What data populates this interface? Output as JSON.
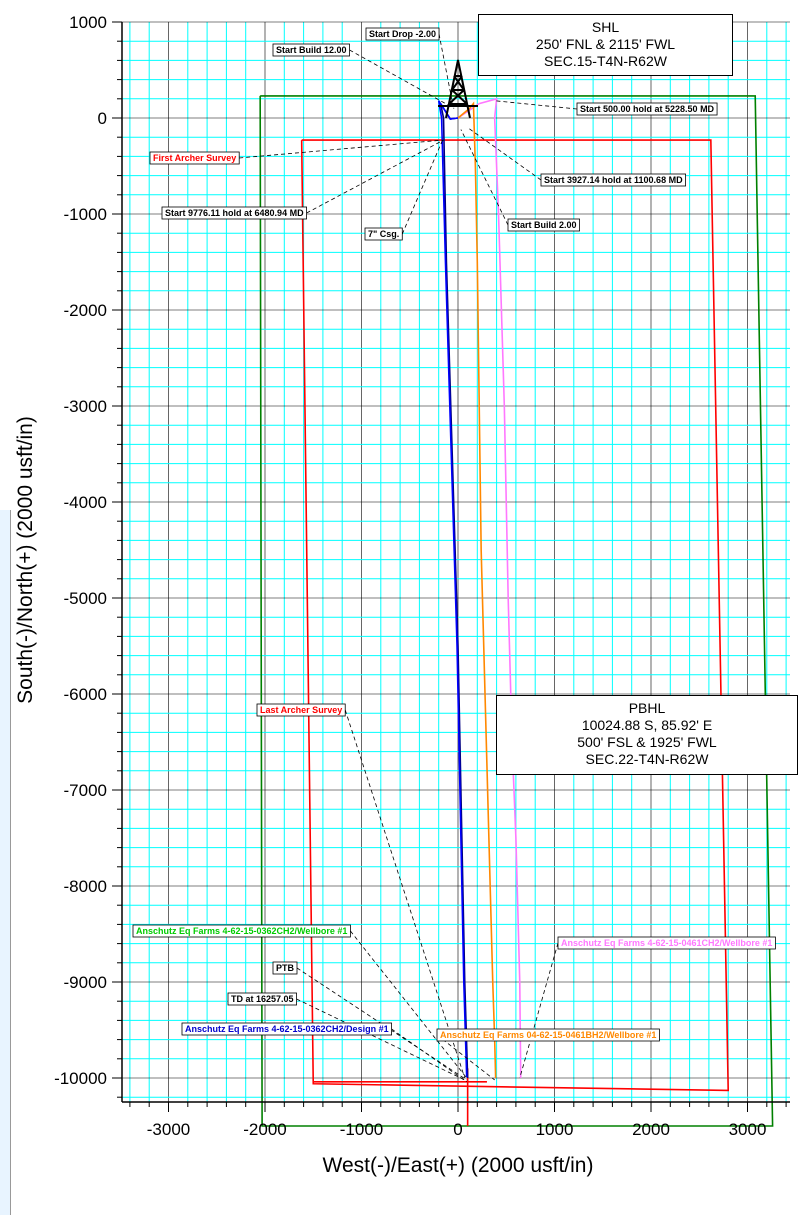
{
  "chart_data": {
    "type": "line",
    "xlabel": "West(-)/East(+) (2000 usft/in)",
    "ylabel": "South(-)/North(+) (2000 usft/in)",
    "xlim": [
      -3500,
      3600
    ],
    "ylim": [
      -10500,
      1000
    ],
    "x_ticks": [
      -3000,
      -2000,
      -1000,
      0,
      1000,
      2000,
      3000
    ],
    "y_ticks": [
      1000,
      0,
      -1000,
      -2000,
      -3000,
      -4000,
      -5000,
      -6000,
      -7000,
      -8000,
      -9000,
      -10000
    ],
    "grid": true,
    "grid_color": "#00FFFF",
    "major_grid_color": "#000000",
    "series": [
      {
        "color": "#008000",
        "x": [
          -2050,
          3080,
          3260,
          -2030,
          -2050
        ],
        "y": [
          230,
          230,
          -10500,
          -10500,
          230
        ]
      },
      {
        "color": "#FF0000",
        "x": [
          -1620,
          2620,
          2800,
          -1500,
          -1620
        ],
        "y": [
          -230,
          -230,
          -10130,
          -10060,
          -230
        ]
      },
      {
        "color": "#FF0000",
        "x": [
          -1500,
          300
        ],
        "y": [
          -10040,
          -10040
        ]
      },
      {
        "color": "#FF0000",
        "x": [
          100,
          100
        ],
        "y": [
          -9900,
          -10500
        ]
      },
      {
        "color": "#FF77FF",
        "x": [
          0,
          220,
          400,
          380,
          420,
          480,
          520,
          560,
          600,
          640,
          650
        ],
        "y": [
          0,
          150,
          200,
          0,
          -1000,
          -3000,
          -5000,
          -6500,
          -7500,
          -9000,
          -10000
        ]
      },
      {
        "color": "#FF8800",
        "x": [
          0,
          120,
          160,
          180,
          200,
          220,
          240,
          280,
          320,
          360,
          380,
          390
        ],
        "y": [
          0,
          100,
          150,
          -500,
          -1500,
          -3000,
          -4500,
          -6000,
          -7500,
          -9000,
          -9600,
          -10000
        ]
      },
      {
        "color": "#000080",
        "x": [
          0,
          -80,
          -180,
          -150,
          -120,
          -60,
          0,
          40,
          70,
          100
        ],
        "y": [
          0,
          -10,
          150,
          0,
          -1500,
          -3500,
          -5500,
          -7500,
          -9000,
          -10000
        ]
      },
      {
        "color": "#0000FF",
        "x": [
          0,
          -80,
          -200,
          -170,
          -130,
          -70,
          -10,
          30,
          60,
          90
        ],
        "y": [
          0,
          -10,
          180,
          0,
          -1500,
          -3500,
          -5500,
          -7500,
          -9000,
          -9990
        ]
      }
    ],
    "annotations": [
      {
        "text": "Start Drop -2.00",
        "color": "#000000",
        "target": [
          -50,
          120
        ]
      },
      {
        "text": "Start Build 12.00",
        "color": "#000000",
        "target": [
          -40,
          100
        ]
      },
      {
        "text": "Start 500.00 hold at 5228.50 MD",
        "color": "#000000",
        "target": [
          380,
          180
        ]
      },
      {
        "text": "First Archer Survey",
        "color": "#FF0000",
        "target": [
          -160,
          -230
        ]
      },
      {
        "text": "Start 3927.14 hold at 1100.68 MD",
        "color": "#000000",
        "target": [
          100,
          -100
        ]
      },
      {
        "text": "Start 9776.11 hold at 6480.94 MD",
        "color": "#000000",
        "target": [
          -150,
          -230
        ]
      },
      {
        "text": "Start Build 2.00",
        "color": "#000000",
        "target": [
          30,
          -120
        ]
      },
      {
        "text": "7\" Csg.",
        "color": "#000000",
        "target": [
          -160,
          -230
        ]
      },
      {
        "text": "Last Archer Survey",
        "color": "#FF0000",
        "target": [
          70,
          -10000
        ]
      },
      {
        "text": "Anschutz Eq Farms 4-62-15-0362CH2/Wellbore #1",
        "color": "#00CC00",
        "target": [
          90,
          -10000
        ]
      },
      {
        "text": "Anschutz Eq Farms 4-62-15-0461CH2/Wellbore #1",
        "color": "#FF77FF",
        "target": [
          640,
          -10000
        ]
      },
      {
        "text": "PTB",
        "color": "#000000",
        "target": [
          90,
          -10020
        ]
      },
      {
        "text": "TD at 16257.05",
        "color": "#000000",
        "target": [
          90,
          -10030
        ]
      },
      {
        "text": "Anschutz Eq Farms 4-62-15-0362CH2/Design #1",
        "color": "#0000CC",
        "target": [
          90,
          -10040
        ]
      },
      {
        "text": "Anschutz Eq Farms 04-62-15-0461BH2/Wellbore #1",
        "color": "#FF8800",
        "target": [
          380,
          -10020
        ]
      }
    ]
  },
  "shl": {
    "title": "SHL",
    "line1": "250' FNL & 2115' FWL",
    "line2": "SEC.15-T4N-R62W"
  },
  "pbhl": {
    "title": "PBHL",
    "line1": "10024.88 S, 85.92' E",
    "line2": "500' FSL & 1925' FWL",
    "line3": "SEC.22-T4N-R62W"
  }
}
